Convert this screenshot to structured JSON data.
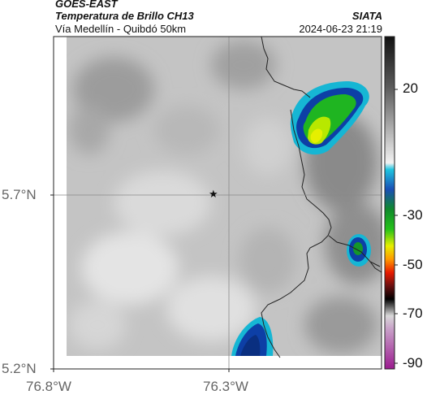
{
  "header": {
    "satellite": "GOES-EAST",
    "product": "Temperatura de Brillo CH13",
    "route": "Vía Medellín - Quibdó 50km",
    "org": "SIATA",
    "datetime": "2024-06-23 21:19"
  },
  "axes": {
    "lat_labels": [
      "5.7°N",
      "5.2°N"
    ],
    "lon_labels": [
      "76.8°W",
      "76.3°W"
    ]
  },
  "colorbar": {
    "ticks": [
      "20",
      "-30",
      "-50",
      "-70",
      "-90"
    ]
  },
  "marker": {
    "symbol": "★",
    "name": "station-marker"
  },
  "colors": {
    "cloud_gray": "#bdbdbd",
    "convective_green": "#1fb521",
    "convective_yellow": "#d8e600",
    "convective_blue": "#0d3fa6",
    "cyan": "#16b6d4",
    "border_line": "#222222"
  }
}
